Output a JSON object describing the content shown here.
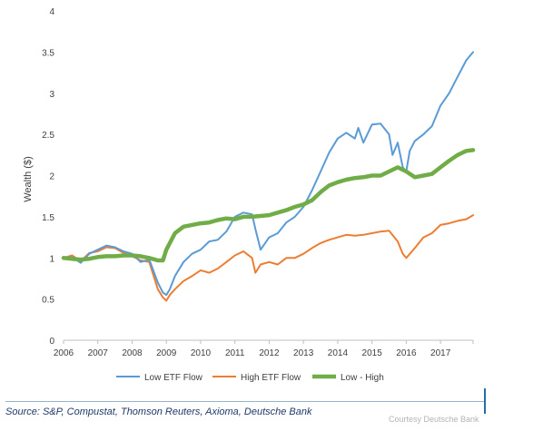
{
  "chart_data": {
    "type": "line",
    "title": "",
    "xlabel": "",
    "ylabel": "Wealth ($)",
    "ylim": [
      0,
      4
    ],
    "xlim": [
      2006,
      2017.95
    ],
    "y_ticks": [
      "0",
      "0.5",
      "1",
      "1.5",
      "2",
      "2.5",
      "3",
      "3.5",
      "4"
    ],
    "x_ticks": [
      "2006",
      "2007",
      "2008",
      "2009",
      "2010",
      "2011",
      "2012",
      "2013",
      "2014",
      "2015",
      "2016",
      "2017"
    ],
    "grid": false,
    "legend_position": "bottom",
    "series": [
      {
        "name": "Low ETF Flow",
        "color": "#5b9bd5",
        "x": [
          2006.0,
          2006.25,
          2006.5,
          2006.75,
          2007.0,
          2007.25,
          2007.5,
          2007.75,
          2008.0,
          2008.25,
          2008.5,
          2008.75,
          2008.9,
          2009.0,
          2009.1,
          2009.25,
          2009.5,
          2009.75,
          2010.0,
          2010.25,
          2010.5,
          2010.75,
          2011.0,
          2011.25,
          2011.5,
          2011.6,
          2011.75,
          2012.0,
          2012.25,
          2012.5,
          2012.75,
          2013.0,
          2013.25,
          2013.5,
          2013.75,
          2014.0,
          2014.25,
          2014.5,
          2014.6,
          2014.75,
          2015.0,
          2015.25,
          2015.5,
          2015.6,
          2015.75,
          2015.9,
          2016.0,
          2016.1,
          2016.25,
          2016.5,
          2016.75,
          2017.0,
          2017.25,
          2017.5,
          2017.75,
          2017.95
        ],
        "values": [
          1.0,
          1.01,
          0.94,
          1.05,
          1.1,
          1.15,
          1.13,
          1.08,
          1.05,
          0.95,
          0.98,
          0.7,
          0.58,
          0.55,
          0.62,
          0.78,
          0.95,
          1.05,
          1.1,
          1.2,
          1.22,
          1.32,
          1.5,
          1.55,
          1.53,
          1.35,
          1.1,
          1.25,
          1.3,
          1.43,
          1.5,
          1.62,
          1.82,
          2.05,
          2.28,
          2.45,
          2.52,
          2.45,
          2.58,
          2.4,
          2.62,
          2.63,
          2.5,
          2.25,
          2.4,
          2.1,
          2.05,
          2.3,
          2.42,
          2.5,
          2.6,
          2.85,
          3.0,
          3.2,
          3.4,
          3.5
        ]
      },
      {
        "name": "High ETF Flow",
        "color": "#ed7d31",
        "x": [
          2006.0,
          2006.25,
          2006.5,
          2006.75,
          2007.0,
          2007.25,
          2007.5,
          2007.75,
          2008.0,
          2008.25,
          2008.5,
          2008.75,
          2008.9,
          2009.0,
          2009.1,
          2009.25,
          2009.5,
          2009.75,
          2010.0,
          2010.25,
          2010.5,
          2010.75,
          2011.0,
          2011.25,
          2011.5,
          2011.6,
          2011.75,
          2012.0,
          2012.25,
          2012.5,
          2012.75,
          2013.0,
          2013.25,
          2013.5,
          2013.75,
          2014.0,
          2014.25,
          2014.5,
          2014.75,
          2015.0,
          2015.25,
          2015.5,
          2015.75,
          2015.9,
          2016.0,
          2016.25,
          2016.5,
          2016.75,
          2017.0,
          2017.25,
          2017.5,
          2017.75,
          2017.95
        ],
        "values": [
          1.0,
          1.03,
          0.96,
          1.06,
          1.08,
          1.13,
          1.12,
          1.06,
          1.02,
          0.97,
          0.95,
          0.62,
          0.52,
          0.48,
          0.55,
          0.62,
          0.72,
          0.78,
          0.85,
          0.82,
          0.87,
          0.95,
          1.03,
          1.08,
          1.0,
          0.82,
          0.92,
          0.95,
          0.92,
          1.0,
          1.0,
          1.05,
          1.12,
          1.18,
          1.22,
          1.25,
          1.28,
          1.27,
          1.28,
          1.3,
          1.32,
          1.33,
          1.2,
          1.05,
          1.0,
          1.12,
          1.25,
          1.3,
          1.4,
          1.42,
          1.45,
          1.47,
          1.52
        ]
      },
      {
        "name": "Low - High",
        "color": "#70ad47",
        "x": [
          2006.0,
          2006.25,
          2006.5,
          2006.75,
          2007.0,
          2007.25,
          2007.5,
          2007.75,
          2008.0,
          2008.25,
          2008.5,
          2008.75,
          2008.9,
          2009.0,
          2009.25,
          2009.5,
          2009.75,
          2010.0,
          2010.25,
          2010.5,
          2010.75,
          2011.0,
          2011.25,
          2011.5,
          2011.75,
          2012.0,
          2012.25,
          2012.5,
          2012.75,
          2013.0,
          2013.25,
          2013.5,
          2013.75,
          2014.0,
          2014.25,
          2014.5,
          2014.75,
          2015.0,
          2015.25,
          2015.5,
          2015.75,
          2016.0,
          2016.25,
          2016.5,
          2016.75,
          2017.0,
          2017.25,
          2017.5,
          2017.75,
          2017.95
        ],
        "values": [
          1.0,
          0.99,
          0.98,
          0.99,
          1.01,
          1.02,
          1.02,
          1.03,
          1.03,
          1.02,
          1.0,
          0.97,
          0.97,
          1.1,
          1.3,
          1.38,
          1.4,
          1.42,
          1.43,
          1.46,
          1.48,
          1.47,
          1.5,
          1.5,
          1.51,
          1.52,
          1.55,
          1.58,
          1.62,
          1.65,
          1.7,
          1.8,
          1.88,
          1.92,
          1.95,
          1.97,
          1.98,
          2.0,
          2.0,
          2.05,
          2.1,
          2.05,
          1.98,
          2.0,
          2.02,
          2.1,
          2.18,
          2.25,
          2.3,
          2.31
        ]
      }
    ]
  },
  "source": "Source: S&P, Compustat, Thomson Reuters, Axioma, Deutsche Bank",
  "courtesy": "Courtesy Deutsche Bank"
}
